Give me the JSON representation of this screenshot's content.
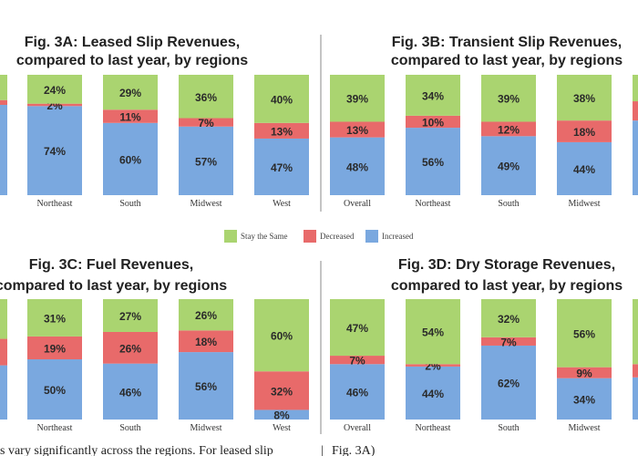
{
  "colors": {
    "stay": "#aad470",
    "decreased": "#e86a6a",
    "increased": "#7aa8df",
    "divider": "#888888"
  },
  "legend": {
    "stay": "Stay the Same",
    "decreased": "Decreased",
    "increased": "Increased"
  },
  "footer": {
    "left": "s vary significantly across the regions. For leased slip",
    "separator": "|",
    "right": "Fig. 3A)"
  },
  "chart_data": [
    {
      "type": "bar",
      "stacked": true,
      "title_lines": [
        "Fig. 3A: Leased Slip Revenues,",
        "compared to last year, by regions"
      ],
      "categories": [
        "Northeast",
        "South",
        "Midwest",
        "West"
      ],
      "series": [
        {
          "name": "Increased",
          "key": "increased",
          "values": [
            74,
            60,
            57,
            47
          ]
        },
        {
          "name": "Decreased",
          "key": "decreased",
          "values": [
            2,
            11,
            7,
            13
          ]
        },
        {
          "name": "Stay the Same",
          "key": "stay",
          "values": [
            24,
            29,
            36,
            40
          ]
        }
      ],
      "partial_left_bar": {
        "increased": 75,
        "decreased": 4,
        "stay": 21
      }
    },
    {
      "type": "bar",
      "stacked": true,
      "title_lines": [
        "Fig. 3B: Transient Slip Revenues,",
        "compared to last year, by regions"
      ],
      "categories": [
        "Overall",
        "Northeast",
        "South",
        "Midwest"
      ],
      "series": [
        {
          "name": "Increased",
          "key": "increased",
          "values": [
            48,
            56,
            49,
            44
          ]
        },
        {
          "name": "Decreased",
          "key": "decreased",
          "values": [
            13,
            10,
            12,
            18
          ]
        },
        {
          "name": "Stay the Same",
          "key": "stay",
          "values": [
            39,
            34,
            39,
            38
          ]
        }
      ],
      "partial_right_bar": {
        "increased": 62,
        "decreased": 16,
        "stay": 22
      }
    },
    {
      "type": "bar",
      "stacked": true,
      "title_lines": [
        "Fig. 3C: Fuel Revenues,",
        "compared to last year, by regions"
      ],
      "categories": [
        "Northeast",
        "South",
        "Midwest",
        "West"
      ],
      "series": [
        {
          "name": "Increased",
          "key": "increased",
          "values": [
            50,
            46,
            56,
            8
          ]
        },
        {
          "name": "Decreased",
          "key": "decreased",
          "values": [
            19,
            26,
            18,
            32
          ]
        },
        {
          "name": "Stay the Same",
          "key": "stay",
          "values": [
            31,
            27,
            26,
            60
          ]
        }
      ],
      "partial_left_bar": {
        "increased": 45,
        "decreased": 22,
        "stay": 33
      }
    },
    {
      "type": "bar",
      "stacked": true,
      "title_lines": [
        "Fig. 3D: Dry Storage Revenues,",
        "compared to last year, by regions"
      ],
      "categories": [
        "Overall",
        "Northeast",
        "South",
        "Midwest"
      ],
      "series": [
        {
          "name": "Increased",
          "key": "increased",
          "values": [
            46,
            44,
            62,
            34
          ]
        },
        {
          "name": "Decreased",
          "key": "decreased",
          "values": [
            7,
            2,
            7,
            9
          ]
        },
        {
          "name": "Stay the Same",
          "key": "stay",
          "values": [
            47,
            54,
            32,
            56
          ]
        }
      ],
      "partial_right_bar": {
        "increased": 35,
        "decreased": 11,
        "stay": 54
      }
    }
  ]
}
